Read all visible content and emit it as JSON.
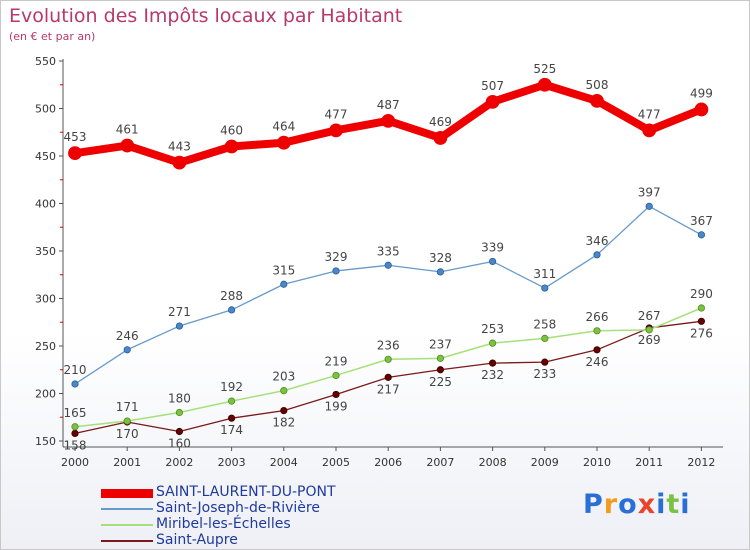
{
  "chart_data": {
    "type": "line",
    "title": "Evolution des Impôts locaux par Habitant",
    "subtitle": "(en € et par an)",
    "categories": [
      "2000",
      "2001",
      "2002",
      "2003",
      "2004",
      "2005",
      "2006",
      "2007",
      "2008",
      "2009",
      "2010",
      "2011",
      "2012"
    ],
    "ylim": [
      150,
      550
    ],
    "yticks": [
      150,
      200,
      250,
      300,
      350,
      400,
      450,
      500,
      550
    ],
    "grid": false,
    "legend_position": "bottom-left",
    "series": [
      {
        "name": "SAINT-LAURENT-DU-PONT",
        "color": "#ee0000",
        "values": [
          453,
          461,
          443,
          460,
          464,
          477,
          487,
          469,
          507,
          525,
          508,
          477,
          499
        ]
      },
      {
        "name": "Saint-Joseph-de-Rivière",
        "color": "#6699cc",
        "values": [
          210,
          246,
          271,
          288,
          315,
          329,
          335,
          328,
          339,
          311,
          346,
          397,
          367
        ]
      },
      {
        "name": "Miribel-les-Échelles",
        "color": "#99dd66",
        "values": [
          165,
          171,
          180,
          192,
          203,
          219,
          236,
          237,
          253,
          258,
          266,
          267,
          290
        ]
      },
      {
        "name": "Saint-Aupre",
        "color": "#660000",
        "values": [
          158,
          170,
          160,
          174,
          182,
          199,
          217,
          225,
          232,
          233,
          246,
          269,
          276
        ]
      }
    ]
  },
  "logo": {
    "letters": [
      "P",
      "r",
      "o",
      "x",
      "i",
      "t",
      "i"
    ],
    "colors": [
      "#2a6fd6",
      "#f29b1d",
      "#2a6fd6",
      "#e8452c",
      "#2a6fd6",
      "#7cc242",
      "#2a6fd6"
    ]
  }
}
